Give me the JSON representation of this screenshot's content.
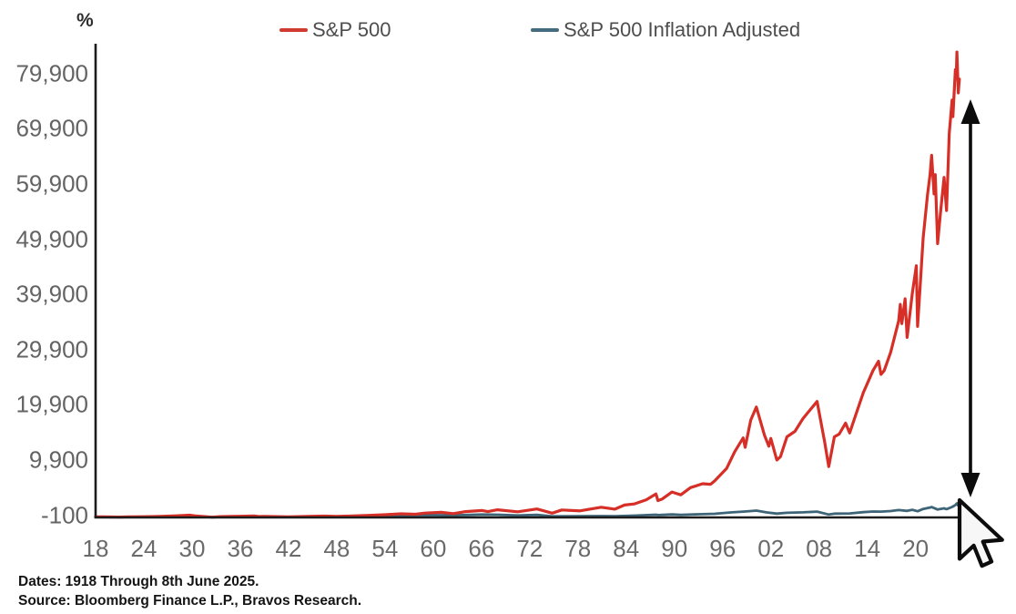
{
  "legend": [
    {
      "label": "S&P 500",
      "color": "#cf3b30"
    },
    {
      "label": "S&P 500 Inflation Adjusted",
      "color": "#456b7e"
    }
  ],
  "footer": {
    "line1": "Dates: 1918 Through 8th June 2025.",
    "line2": "Source: Bloomberg Finance L.P., Bravos Research."
  },
  "chart_data": {
    "type": "line",
    "title": "",
    "xlabel": "",
    "ylabel": "%",
    "grid": false,
    "legend_position": "top",
    "x_axis": {
      "range": [
        1917.5,
        2026.5
      ],
      "ticks": [
        {
          "label": "18",
          "year": 1918
        },
        {
          "label": "24",
          "year": 1924
        },
        {
          "label": "30",
          "year": 1930
        },
        {
          "label": "36",
          "year": 1936
        },
        {
          "label": "42",
          "year": 1942
        },
        {
          "label": "48",
          "year": 1948
        },
        {
          "label": "54",
          "year": 1954
        },
        {
          "label": "60",
          "year": 1960
        },
        {
          "label": "66",
          "year": 1966
        },
        {
          "label": "72",
          "year": 1972
        },
        {
          "label": "78",
          "year": 1978
        },
        {
          "label": "84",
          "year": 1984
        },
        {
          "label": "90",
          "year": 1990
        },
        {
          "label": "96",
          "year": 1996
        },
        {
          "label": "02",
          "year": 2002
        },
        {
          "label": "08",
          "year": 2008
        },
        {
          "label": "14",
          "year": 2014
        },
        {
          "label": "20",
          "year": 2020
        }
      ]
    },
    "y_axis": {
      "unit": "%",
      "range": [
        -100,
        85800
      ],
      "ticks": [
        {
          "label": "-100",
          "value": -100
        },
        {
          "label": "9,900",
          "value": 9900
        },
        {
          "label": "19,900",
          "value": 19900
        },
        {
          "label": "29,900",
          "value": 29900
        },
        {
          "label": "39,900",
          "value": 39900
        },
        {
          "label": "49,900",
          "value": 49900
        },
        {
          "label": "59,900",
          "value": 59900
        },
        {
          "label": "69,900",
          "value": 69900
        },
        {
          "label": "79,900",
          "value": 79900
        }
      ]
    },
    "series": [
      {
        "name": "S&P 500",
        "color": "#d52f27",
        "width": 3.2,
        "points": [
          [
            1918,
            0
          ],
          [
            1919,
            20
          ],
          [
            1920,
            -15
          ],
          [
            1921,
            -28
          ],
          [
            1922,
            8
          ],
          [
            1924,
            30
          ],
          [
            1926,
            90
          ],
          [
            1928,
            200
          ],
          [
            1929.7,
            320
          ],
          [
            1930.5,
            160
          ],
          [
            1932.5,
            -45
          ],
          [
            1933.5,
            45
          ],
          [
            1936,
            120
          ],
          [
            1937.7,
            170
          ],
          [
            1938.3,
            60
          ],
          [
            1939,
            90
          ],
          [
            1942,
            20
          ],
          [
            1945,
            110
          ],
          [
            1946.5,
            140
          ],
          [
            1948,
            100
          ],
          [
            1950,
            170
          ],
          [
            1952,
            280
          ],
          [
            1954,
            400
          ],
          [
            1956,
            560
          ],
          [
            1957.8,
            480
          ],
          [
            1959,
            700
          ],
          [
            1961,
            830
          ],
          [
            1962.5,
            600
          ],
          [
            1964,
            950
          ],
          [
            1966.1,
            1150
          ],
          [
            1966.8,
            950
          ],
          [
            1968,
            1280
          ],
          [
            1970.5,
            930
          ],
          [
            1972.9,
            1430
          ],
          [
            1974.8,
            680
          ],
          [
            1976,
            1260
          ],
          [
            1978.2,
            1080
          ],
          [
            1980.9,
            1750
          ],
          [
            1982.6,
            1400
          ],
          [
            1983.8,
            2150
          ],
          [
            1985,
            2350
          ],
          [
            1986.5,
            3100
          ],
          [
            1987.7,
            4150
          ],
          [
            1987.95,
            2950
          ],
          [
            1988.5,
            3250
          ],
          [
            1989.7,
            4500
          ],
          [
            1990.8,
            4000
          ],
          [
            1992,
            5300
          ],
          [
            1993.5,
            6000
          ],
          [
            1994.5,
            5900
          ],
          [
            1995,
            6500
          ],
          [
            1996.5,
            8800
          ],
          [
            1997.5,
            11800
          ],
          [
            1998.55,
            14300
          ],
          [
            1998.8,
            12600
          ],
          [
            1999.5,
            17500
          ],
          [
            2000.2,
            19900
          ],
          [
            2001.2,
            14800
          ],
          [
            2001.75,
            12800
          ],
          [
            2002.0,
            14200
          ],
          [
            2002.75,
            10300
          ],
          [
            2003.2,
            10900
          ],
          [
            2004,
            14500
          ],
          [
            2005,
            15500
          ],
          [
            2006,
            17800
          ],
          [
            2007.75,
            20900
          ],
          [
            2008.7,
            13500
          ],
          [
            2009.2,
            9100
          ],
          [
            2009.9,
            14500
          ],
          [
            2010.5,
            15000
          ],
          [
            2011.3,
            17000
          ],
          [
            2011.8,
            15200
          ],
          [
            2012.5,
            18200
          ],
          [
            2013.5,
            22500
          ],
          [
            2014.7,
            26500
          ],
          [
            2015.4,
            28200
          ],
          [
            2015.7,
            25800
          ],
          [
            2016.1,
            26500
          ],
          [
            2016.9,
            29800
          ],
          [
            2017.9,
            35500
          ],
          [
            2018.1,
            38500
          ],
          [
            2018.3,
            35000
          ],
          [
            2018.7,
            39500
          ],
          [
            2018.95,
            32500
          ],
          [
            2019.6,
            40500
          ],
          [
            2020.1,
            45500
          ],
          [
            2020.25,
            34500
          ],
          [
            2020.6,
            42500
          ],
          [
            2020.95,
            50500
          ],
          [
            2021.5,
            58500
          ],
          [
            2021.8,
            62000
          ],
          [
            2022.0,
            65500
          ],
          [
            2022.3,
            58500
          ],
          [
            2022.45,
            62000
          ],
          [
            2022.75,
            49500
          ],
          [
            2023.1,
            55000
          ],
          [
            2023.55,
            61500
          ],
          [
            2023.85,
            55500
          ],
          [
            2024.2,
            69500
          ],
          [
            2024.55,
            75500
          ],
          [
            2024.65,
            72500
          ],
          [
            2024.95,
            81000
          ],
          [
            2025.05,
            79500
          ],
          [
            2025.15,
            84200
          ],
          [
            2025.32,
            76800
          ],
          [
            2025.45,
            79300
          ]
        ]
      },
      {
        "name": "S&P 500 Inflation Adjusted",
        "color": "#3e6577",
        "width": 2.8,
        "points": [
          [
            1918,
            0
          ],
          [
            1920,
            -20
          ],
          [
            1921,
            -30
          ],
          [
            1925,
            40
          ],
          [
            1929.7,
            150
          ],
          [
            1932.5,
            -50
          ],
          [
            1934,
            0
          ],
          [
            1937,
            80
          ],
          [
            1938.3,
            20
          ],
          [
            1942,
            -10
          ],
          [
            1946,
            70
          ],
          [
            1949,
            40
          ],
          [
            1952,
            120
          ],
          [
            1956,
            260
          ],
          [
            1959,
            330
          ],
          [
            1962.5,
            280
          ],
          [
            1966.1,
            420
          ],
          [
            1968,
            400
          ],
          [
            1970.5,
            270
          ],
          [
            1972.9,
            360
          ],
          [
            1974.8,
            90
          ],
          [
            1978,
            110
          ],
          [
            1980.9,
            140
          ],
          [
            1982.6,
            110
          ],
          [
            1985,
            230
          ],
          [
            1987.7,
            400
          ],
          [
            1988,
            330
          ],
          [
            1989.7,
            450
          ],
          [
            1990.8,
            380
          ],
          [
            1993,
            480
          ],
          [
            1995,
            560
          ],
          [
            1997,
            800
          ],
          [
            1998.55,
            950
          ],
          [
            1999.5,
            1050
          ],
          [
            2000.2,
            1130
          ],
          [
            2001.5,
            800
          ],
          [
            2002.75,
            600
          ],
          [
            2004,
            740
          ],
          [
            2006,
            830
          ],
          [
            2007.75,
            950
          ],
          [
            2009.2,
            420
          ],
          [
            2010,
            600
          ],
          [
            2011.8,
            620
          ],
          [
            2013.5,
            850
          ],
          [
            2014.7,
            980
          ],
          [
            2015.7,
            950
          ],
          [
            2016.9,
            1060
          ],
          [
            2017.9,
            1230
          ],
          [
            2018.95,
            1080
          ],
          [
            2019.6,
            1280
          ],
          [
            2020.25,
            1020
          ],
          [
            2020.95,
            1430
          ],
          [
            2021.8,
            1700
          ],
          [
            2022.0,
            1780
          ],
          [
            2022.75,
            1330
          ],
          [
            2023.55,
            1550
          ],
          [
            2023.85,
            1400
          ],
          [
            2024.55,
            1800
          ],
          [
            2024.95,
            2150
          ],
          [
            2025.15,
            2450
          ],
          [
            2025.32,
            2050
          ],
          [
            2025.45,
            2400
          ]
        ]
      }
    ],
    "annotations": [
      {
        "type": "double-arrow",
        "note": "vertical range arrow at right edge from final value down to baseline"
      },
      {
        "type": "cursor",
        "note": "mouse pointer at end of series"
      }
    ]
  }
}
